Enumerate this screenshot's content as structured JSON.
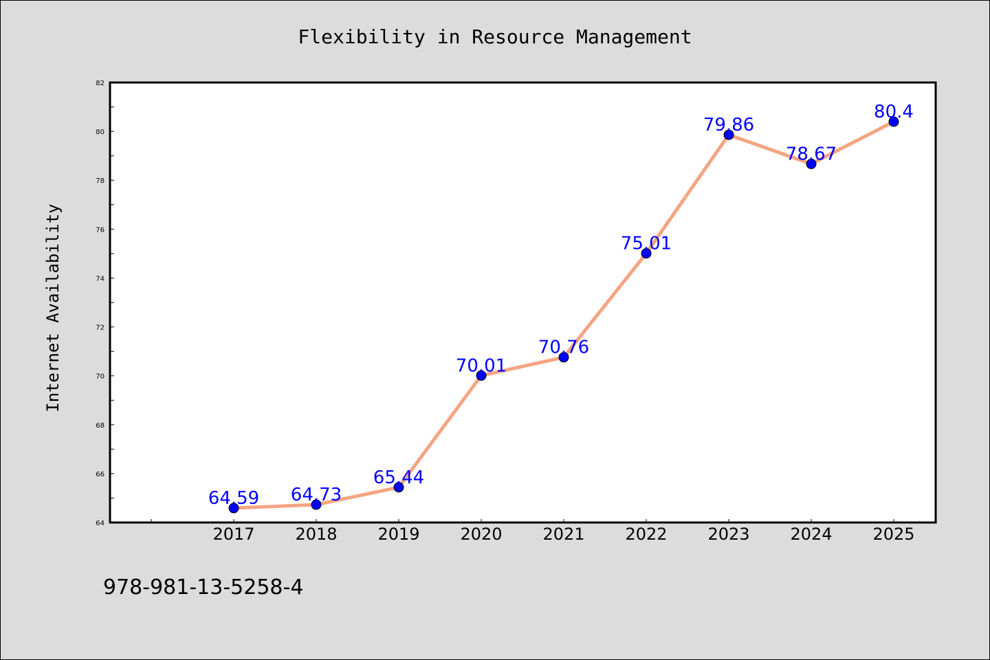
{
  "chart_data": {
    "type": "line",
    "title": "Flexibility in Resource Management",
    "xlabel": "",
    "ylabel": "Internet Availability",
    "categories": [
      "2017",
      "2018",
      "2019",
      "2020",
      "2021",
      "2022",
      "2023",
      "2024",
      "2025"
    ],
    "values": [
      64.59,
      64.73,
      65.44,
      70.01,
      70.76,
      75.01,
      79.86,
      78.67,
      80.4
    ],
    "labels": [
      "64.59",
      "64.73",
      "65.44",
      "70.01",
      "70.76",
      "75.01",
      "79.86",
      "78.67",
      "80.4"
    ],
    "ylim": [
      64,
      82
    ],
    "yticks": [
      64,
      66,
      68,
      70,
      72,
      74,
      76,
      78,
      80,
      82
    ],
    "grid": false,
    "colors": {
      "line": "#f4a582",
      "marker": "#0000ff",
      "label": "#0000ff"
    }
  },
  "footer": {
    "isbn": "978-981-13-5258-4"
  }
}
